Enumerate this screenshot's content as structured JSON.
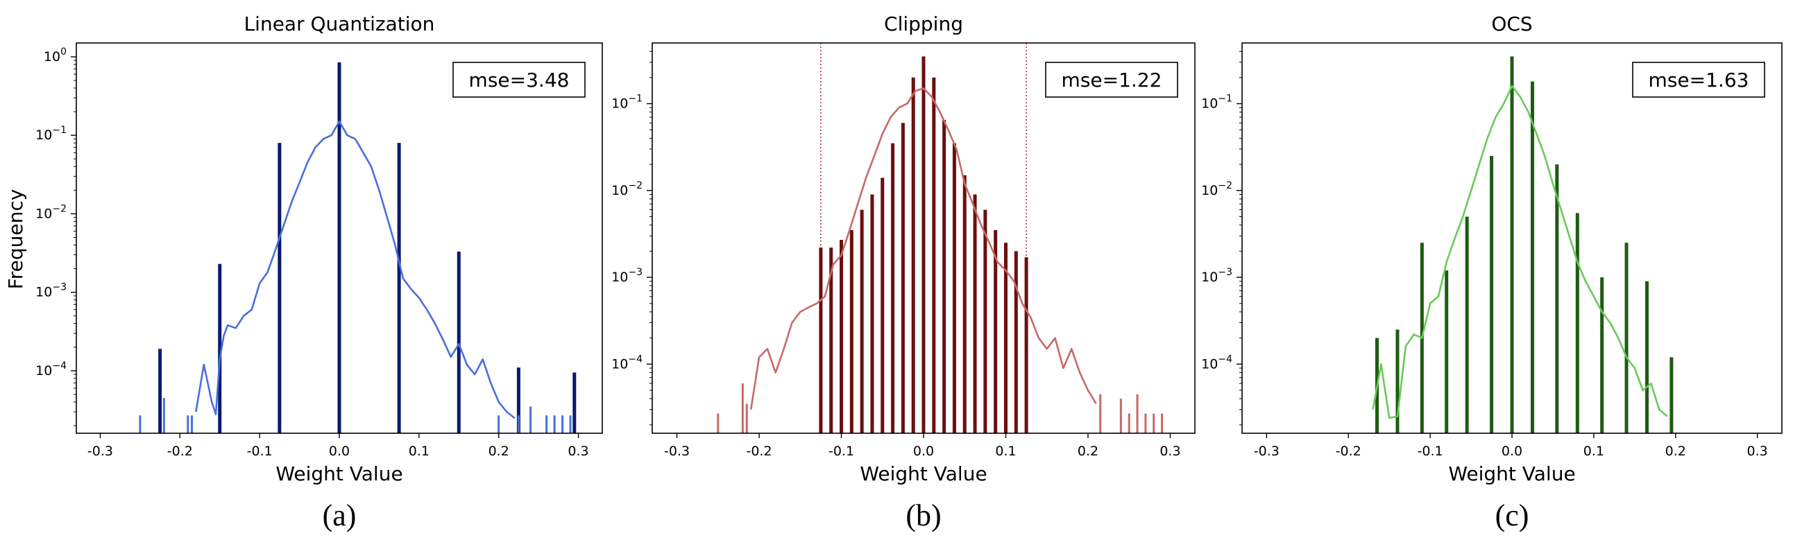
{
  "figure": {
    "ylabel": "Frequency",
    "xlabel": "Weight Value"
  },
  "chart_data": [
    {
      "type": "bar",
      "title": "Linear Quantization",
      "caption": "(a)",
      "xlabel": "Weight Value",
      "ylabel": "Frequency",
      "yscale": "log",
      "xlim": [
        -0.33,
        0.33
      ],
      "ylim": [
        1.6e-05,
        1.5
      ],
      "xticks": [
        "-0.3",
        "-0.2",
        "-0.1",
        "0.0",
        "0.1",
        "0.2",
        "0.3"
      ],
      "yticks": [
        "10^-4",
        "10^-3",
        "10^-2",
        "10^-1",
        "10^0"
      ],
      "annotation": "mse=3.48",
      "colors": {
        "bars": "#0a1a6e",
        "line": "#4a6fdc",
        "edge_bars": "#4a6fdc"
      },
      "series": [
        {
          "kind": "bars",
          "x": [
            -0.225,
            -0.15,
            -0.075,
            0.0,
            0.075,
            0.15,
            0.225,
            0.295
          ],
          "y": [
            0.00019,
            0.0023,
            0.08,
            0.85,
            0.08,
            0.0033,
            0.00011,
            9.5e-05
          ]
        },
        {
          "kind": "edge_bars",
          "x": [
            -0.25,
            -0.22,
            -0.19,
            -0.185,
            0.2,
            0.225,
            0.24,
            0.26,
            0.27,
            0.28,
            0.29
          ],
          "y": [
            2.7e-05,
            4.5e-05,
            2.7e-05,
            2.7e-05,
            2.7e-05,
            2.7e-05,
            3.5e-05,
            2.7e-05,
            2.7e-05,
            2.7e-05,
            2.7e-05
          ]
        },
        {
          "kind": "line",
          "x": [
            -0.18,
            -0.17,
            -0.16,
            -0.155,
            -0.15,
            -0.145,
            -0.14,
            -0.13,
            -0.12,
            -0.11,
            -0.1,
            -0.09,
            -0.08,
            -0.07,
            -0.06,
            -0.05,
            -0.04,
            -0.03,
            -0.02,
            -0.01,
            0.0,
            0.01,
            0.02,
            0.03,
            0.04,
            0.05,
            0.06,
            0.07,
            0.08,
            0.09,
            0.1,
            0.11,
            0.12,
            0.13,
            0.14,
            0.15,
            0.16,
            0.17,
            0.18,
            0.19,
            0.2,
            0.21,
            0.22
          ],
          "y": [
            3e-05,
            0.00012,
            4e-05,
            2.8e-05,
            0.00014,
            0.00028,
            0.00038,
            0.00035,
            0.0005,
            0.0006,
            0.0013,
            0.0018,
            0.0035,
            0.007,
            0.014,
            0.025,
            0.045,
            0.07,
            0.09,
            0.1,
            0.15,
            0.1,
            0.09,
            0.06,
            0.04,
            0.02,
            0.009,
            0.004,
            0.0015,
            0.0011,
            0.00085,
            0.0006,
            0.0004,
            0.00025,
            0.00015,
            0.00022,
            0.00012,
            9e-05,
            0.00014,
            7e-05,
            4e-05,
            3e-05,
            2.5e-05
          ]
        }
      ]
    },
    {
      "type": "bar",
      "title": "Clipping",
      "caption": "(b)",
      "xlabel": "Weight Value",
      "yscale": "log",
      "xlim": [
        -0.33,
        0.33
      ],
      "ylim": [
        1.6e-05,
        0.5
      ],
      "xticks": [
        "-0.3",
        "-0.2",
        "-0.1",
        "0.0",
        "0.1",
        "0.2",
        "0.3"
      ],
      "yticks": [
        "10^-4",
        "10^-3",
        "10^-2",
        "10^-1"
      ],
      "annotation": "mse=1.22",
      "clip_lines": [
        -0.125,
        0.125
      ],
      "colors": {
        "bars": "#6b0f0f",
        "line": "#c76a66",
        "edge_bars": "#c76a66",
        "clip_lines": "#a0202a"
      },
      "series": [
        {
          "kind": "bars",
          "x": [
            -0.125,
            -0.1125,
            -0.1,
            -0.0875,
            -0.075,
            -0.0625,
            -0.05,
            -0.0375,
            -0.025,
            -0.0125,
            0.0,
            0.0125,
            0.025,
            0.0375,
            0.05,
            0.0625,
            0.075,
            0.0875,
            0.1,
            0.1125,
            0.125
          ],
          "y": [
            0.0022,
            0.0022,
            0.0027,
            0.0035,
            0.006,
            0.009,
            0.014,
            0.035,
            0.06,
            0.2,
            0.35,
            0.2,
            0.065,
            0.035,
            0.015,
            0.009,
            0.006,
            0.0035,
            0.0025,
            0.002,
            0.0017
          ]
        },
        {
          "kind": "edge_bars",
          "x": [
            -0.25,
            -0.22,
            -0.215,
            0.215,
            0.24,
            0.25,
            0.26,
            0.27,
            0.28,
            0.29
          ],
          "y": [
            2.7e-05,
            6e-05,
            3.5e-05,
            4.5e-05,
            4e-05,
            2.7e-05,
            4.5e-05,
            2.7e-05,
            2.7e-05,
            2.7e-05
          ]
        },
        {
          "kind": "line",
          "x": [
            -0.21,
            -0.2,
            -0.19,
            -0.18,
            -0.17,
            -0.16,
            -0.15,
            -0.14,
            -0.13,
            -0.12,
            -0.11,
            -0.1,
            -0.09,
            -0.08,
            -0.07,
            -0.06,
            -0.05,
            -0.04,
            -0.03,
            -0.02,
            -0.01,
            0.0,
            0.01,
            0.02,
            0.03,
            0.04,
            0.05,
            0.06,
            0.07,
            0.08,
            0.09,
            0.1,
            0.11,
            0.12,
            0.13,
            0.14,
            0.15,
            0.16,
            0.17,
            0.18,
            0.19,
            0.2,
            0.21
          ],
          "y": [
            3e-05,
            0.00012,
            0.00015,
            8e-05,
            0.00015,
            0.0003,
            0.0004,
            0.00045,
            0.0005,
            0.0006,
            0.0014,
            0.0018,
            0.0035,
            0.007,
            0.014,
            0.025,
            0.045,
            0.07,
            0.09,
            0.1,
            0.14,
            0.15,
            0.12,
            0.08,
            0.05,
            0.03,
            0.012,
            0.007,
            0.004,
            0.0025,
            0.0015,
            0.0012,
            0.0009,
            0.0005,
            0.00035,
            0.0002,
            0.00015,
            0.0002,
            9e-05,
            0.00015,
            8e-05,
            5e-05,
            3.5e-05
          ]
        }
      ]
    },
    {
      "type": "bar",
      "title": "OCS",
      "caption": "(c)",
      "xlabel": "Weight Value",
      "yscale": "log",
      "xlim": [
        -0.33,
        0.33
      ],
      "ylim": [
        1.6e-05,
        0.5
      ],
      "xticks": [
        "-0.3",
        "-0.2",
        "-0.1",
        "0.0",
        "0.1",
        "0.2",
        "0.3"
      ],
      "yticks": [
        "10^-4",
        "10^-3",
        "10^-2",
        "10^-1"
      ],
      "annotation": "mse=1.63",
      "colors": {
        "bars": "#1e5c12",
        "line": "#66cc55",
        "edge_bars": "#66cc55"
      },
      "series": [
        {
          "kind": "bars",
          "x": [
            -0.165,
            -0.14,
            -0.11,
            -0.08,
            -0.055,
            -0.025,
            0.0,
            0.025,
            0.055,
            0.08,
            0.11,
            0.14,
            0.165,
            0.195
          ],
          "y": [
            0.0002,
            0.00025,
            0.0025,
            0.0012,
            0.005,
            0.025,
            0.35,
            0.18,
            0.02,
            0.0055,
            0.001,
            0.0025,
            0.0009,
            0.00012
          ]
        },
        {
          "kind": "line",
          "x": [
            -0.17,
            -0.16,
            -0.15,
            -0.14,
            -0.13,
            -0.12,
            -0.11,
            -0.1,
            -0.09,
            -0.08,
            -0.07,
            -0.06,
            -0.05,
            -0.04,
            -0.03,
            -0.02,
            -0.01,
            0.0,
            0.01,
            0.02,
            0.03,
            0.04,
            0.05,
            0.06,
            0.07,
            0.08,
            0.09,
            0.1,
            0.11,
            0.12,
            0.13,
            0.14,
            0.15,
            0.16,
            0.17,
            0.18,
            0.19
          ],
          "y": [
            3e-05,
            0.0001,
            2.4e-05,
            2.5e-05,
            0.00016,
            0.00022,
            0.0002,
            0.0005,
            0.0006,
            0.0015,
            0.0028,
            0.005,
            0.01,
            0.02,
            0.04,
            0.07,
            0.1,
            0.16,
            0.12,
            0.08,
            0.045,
            0.025,
            0.012,
            0.006,
            0.003,
            0.0015,
            0.0009,
            0.0006,
            0.0004,
            0.0003,
            0.0002,
            0.00012,
            9e-05,
            5e-05,
            6e-05,
            3e-05,
            2.5e-05
          ]
        }
      ]
    }
  ]
}
